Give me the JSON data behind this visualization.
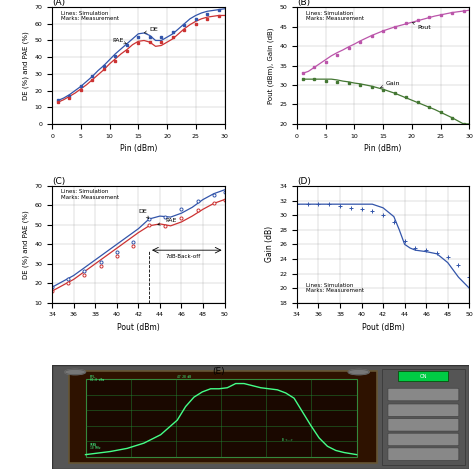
{
  "A": {
    "title": "(A)",
    "xlabel": "Pin (dBm)",
    "ylabel": "DE (%) and PAE (%)",
    "xlim": [
      0,
      30
    ],
    "ylim": [
      0,
      70
    ],
    "xticks": [
      0,
      5,
      10,
      15,
      20,
      25,
      30
    ],
    "yticks": [
      0,
      10,
      20,
      30,
      40,
      50,
      60,
      70
    ],
    "DE_sim_x": [
      1,
      2,
      3,
      4,
      5,
      6,
      7,
      8,
      9,
      10,
      11,
      12,
      13,
      14,
      15,
      16,
      17,
      18,
      19,
      20,
      21,
      22,
      23,
      24,
      25,
      26,
      27,
      28,
      29,
      30
    ],
    "DE_sim_y": [
      14,
      15.5,
      17.5,
      20,
      22.5,
      25.5,
      28.5,
      32,
      35,
      38.5,
      42,
      45,
      48,
      51,
      54,
      54.5,
      53,
      50,
      50,
      52,
      54,
      57,
      60,
      63,
      65,
      66.5,
      67.5,
      68,
      68.5,
      69
    ],
    "PAE_sim_x": [
      1,
      2,
      3,
      4,
      5,
      6,
      7,
      8,
      9,
      10,
      11,
      12,
      13,
      14,
      15,
      16,
      17,
      18,
      19,
      20,
      21,
      22,
      23,
      24,
      25,
      26,
      27,
      28,
      29,
      30
    ],
    "PAE_sim_y": [
      13,
      14.5,
      16.5,
      18.5,
      21,
      23.5,
      26.5,
      29.5,
      32.5,
      36,
      39,
      42,
      44.5,
      47.5,
      49.5,
      50,
      49,
      46.5,
      47,
      49,
      51,
      54,
      57,
      59.5,
      61.5,
      63,
      64,
      64.5,
      65,
      65
    ],
    "DE_meas_x": [
      1,
      3,
      5,
      7,
      9,
      11,
      13,
      15,
      17,
      19,
      21,
      23,
      25,
      27,
      29
    ],
    "DE_meas_y": [
      14.5,
      17,
      22.5,
      28.5,
      35,
      41,
      47,
      52,
      52,
      52,
      55,
      59,
      63,
      66,
      68
    ],
    "PAE_meas_x": [
      1,
      3,
      5,
      7,
      9,
      11,
      13,
      15,
      17,
      19,
      21,
      23,
      25,
      27,
      29
    ],
    "PAE_meas_y": [
      13,
      15.5,
      20.5,
      26.5,
      33,
      38,
      43.5,
      48.5,
      49,
      49,
      52,
      56.5,
      60,
      63,
      64.5
    ],
    "legend": "Lines: Simulation\nMarks: Measurement"
  },
  "B": {
    "title": "(B)",
    "xlabel": "Pin (dBm)",
    "ylabel": "Pout (dBm), Gain (dB)",
    "xlim": [
      0,
      30
    ],
    "ylim": [
      20,
      50
    ],
    "xticks": [
      0,
      5,
      10,
      15,
      20,
      25,
      30
    ],
    "yticks": [
      20,
      25,
      30,
      35,
      40,
      45,
      50
    ],
    "Pout_sim_x": [
      1,
      2,
      3,
      4,
      5,
      6,
      7,
      8,
      9,
      10,
      11,
      12,
      13,
      14,
      15,
      16,
      17,
      18,
      19,
      20,
      21,
      22,
      23,
      24,
      25,
      26,
      27,
      28,
      29,
      30
    ],
    "Pout_sim_y": [
      33,
      33.5,
      34.5,
      35.5,
      36.5,
      37.5,
      38.3,
      39.0,
      39.8,
      40.5,
      41.3,
      42.0,
      42.7,
      43.3,
      43.9,
      44.4,
      44.9,
      45.3,
      45.7,
      46.1,
      46.5,
      46.9,
      47.3,
      47.7,
      48.0,
      48.3,
      48.6,
      48.8,
      49.0,
      49.2
    ],
    "Gain_sim_x": [
      1,
      2,
      3,
      4,
      5,
      6,
      7,
      8,
      9,
      10,
      11,
      12,
      13,
      14,
      15,
      16,
      17,
      18,
      19,
      20,
      21,
      22,
      23,
      24,
      25,
      26,
      27,
      28,
      29,
      30
    ],
    "Gain_sim_y": [
      31.5,
      31.5,
      31.5,
      31.5,
      31.5,
      31.5,
      31.3,
      31.0,
      30.8,
      30.5,
      30.3,
      30.0,
      29.7,
      29.3,
      28.9,
      28.4,
      27.9,
      27.3,
      26.7,
      26.1,
      25.5,
      24.9,
      24.3,
      23.7,
      23.0,
      22.3,
      21.6,
      20.8,
      20.0,
      20.0
    ],
    "Pout_meas_x": [
      1,
      3,
      5,
      7,
      9,
      11,
      13,
      15,
      17,
      19,
      21,
      23,
      25,
      27,
      29
    ],
    "Pout_meas_y": [
      33.0,
      34.5,
      36.0,
      37.8,
      39.5,
      41.0,
      42.5,
      43.8,
      44.9,
      46.0,
      46.7,
      47.4,
      48.0,
      48.6,
      49.1
    ],
    "Gain_meas_x": [
      1,
      3,
      5,
      7,
      9,
      11,
      13,
      15,
      17,
      19,
      21,
      23,
      25,
      27,
      29
    ],
    "Gain_meas_y": [
      31.5,
      31.5,
      31.0,
      30.8,
      30.5,
      30.0,
      29.5,
      28.8,
      27.9,
      27.0,
      25.7,
      24.4,
      23.0,
      21.6,
      20.1
    ],
    "legend": "Lines: Simulation\nMarks: Measurement"
  },
  "C": {
    "title": "(C)",
    "xlabel": "Pout (dBm)",
    "ylabel": "DE (%) and PAE (%)",
    "xlim": [
      34,
      50
    ],
    "ylim": [
      10,
      70
    ],
    "xticks": [
      34,
      36,
      38,
      40,
      42,
      44,
      46,
      48,
      50
    ],
    "yticks": [
      10,
      20,
      30,
      40,
      50,
      60,
      70
    ],
    "DE_sim_x": [
      34,
      35,
      36,
      37,
      38,
      39,
      40,
      41,
      42,
      43,
      44,
      45,
      46,
      47,
      48,
      49,
      50
    ],
    "DE_sim_y": [
      18,
      21,
      24,
      28,
      32,
      36,
      40,
      44,
      48,
      53,
      54.5,
      54,
      56,
      59,
      63,
      66,
      68
    ],
    "PAE_sim_x": [
      34,
      35,
      36,
      37,
      38,
      39,
      40,
      41,
      42,
      43,
      44,
      45,
      46,
      47,
      48,
      49,
      50
    ],
    "PAE_sim_y": [
      16,
      19,
      22,
      26,
      30,
      34,
      38,
      42,
      46,
      49.5,
      50.5,
      49.5,
      51.5,
      54.5,
      58,
      61,
      63
    ],
    "DE_meas_x": [
      34,
      35.5,
      37,
      38.5,
      40,
      41.5,
      43,
      44.5,
      46,
      47.5,
      49,
      50
    ],
    "DE_meas_y": [
      18,
      22,
      26.5,
      31,
      36,
      41,
      53,
      54,
      58,
      62,
      65.5,
      67
    ],
    "PAE_meas_x": [
      34,
      35.5,
      37,
      38.5,
      40,
      41.5,
      43,
      44.5,
      46,
      47.5,
      49,
      50
    ],
    "PAE_meas_y": [
      16,
      20,
      24.5,
      29,
      34,
      39,
      50,
      49.5,
      53.5,
      57.5,
      61,
      63
    ],
    "legend": "Lines: Simulation\nMarks: Measurement",
    "backoff_x": 43.0,
    "backoff_x2": 50.0,
    "backoff_y": 37
  },
  "D": {
    "title": "(D)",
    "xlabel": "Pout (dBm)",
    "ylabel": "Gain (dB)",
    "xlim": [
      34,
      50
    ],
    "ylim": [
      18,
      34
    ],
    "xticks": [
      34,
      36,
      38,
      40,
      42,
      44,
      46,
      48,
      50
    ],
    "yticks": [
      18,
      20,
      22,
      24,
      26,
      28,
      30,
      32,
      34
    ],
    "Gain_sim_x": [
      34,
      35,
      36,
      37,
      38,
      39,
      40,
      41,
      42,
      43,
      43.5,
      44,
      44.5,
      45,
      46,
      47,
      48,
      49,
      50
    ],
    "Gain_sim_y": [
      31.5,
      31.5,
      31.5,
      31.5,
      31.5,
      31.5,
      31.5,
      31.5,
      31.0,
      29.8,
      28.0,
      26.0,
      25.5,
      25.2,
      25.0,
      24.7,
      23.5,
      21.5,
      20.0
    ],
    "Gain_meas_x": [
      34,
      35,
      36,
      37,
      38,
      39,
      40,
      41,
      42,
      43,
      44,
      45,
      46,
      47,
      48,
      49,
      50
    ],
    "Gain_meas_y": [
      31.5,
      31.5,
      31.5,
      31.5,
      31.3,
      31.0,
      30.8,
      30.5,
      30.0,
      29.0,
      26.5,
      25.5,
      25.2,
      24.8,
      24.2,
      23.2,
      21.5
    ],
    "legend": "Lines: Simulation\nMarks: Measurement"
  },
  "E_title": "(E)",
  "colors": {
    "blue": "#3355AA",
    "red": "#CC3333",
    "magenta": "#BB55AA",
    "green": "#447733",
    "osc_green": "#44FF88",
    "osc_grid": "#228833",
    "osc_bg": "#3a1a00",
    "osc_frame": "#553300"
  }
}
